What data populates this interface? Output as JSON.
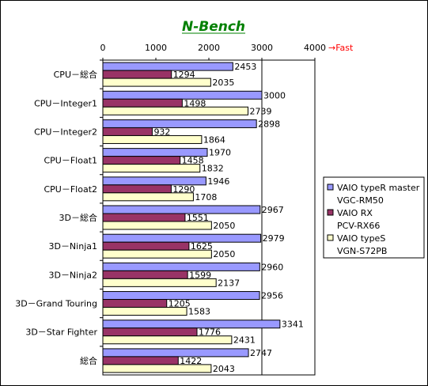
{
  "chart_data": {
    "type": "bar",
    "orientation": "horizontal",
    "title": "N-Bench",
    "axis_note": "→Fast",
    "xlim": [
      0,
      4000
    ],
    "xticks": [
      "0",
      "1000",
      "2000",
      "3000",
      "4000"
    ],
    "grid": false,
    "legend_position": "right",
    "categories": [
      "CPU－総合",
      "CPU－Integer1",
      "CPU－Integer2",
      "CPU－Float1",
      "CPU－Float2",
      "3D－総合",
      "3D－Ninja1",
      "3D－Ninja2",
      "3D－Grand Touring",
      "3D－Star Fighter",
      "総合"
    ],
    "series": [
      {
        "name": "VAIO typeR master",
        "subname": "VGC-RM50",
        "color": "#9999ff",
        "values": [
          2453,
          3000,
          2898,
          1970,
          1946,
          2967,
          2979,
          2960,
          2956,
          3341,
          2747
        ]
      },
      {
        "name": "VAIO RX",
        "subname": "PCV-RX66",
        "color": "#993366",
        "values": [
          1294,
          1498,
          932,
          1458,
          1290,
          1551,
          1625,
          1599,
          1205,
          1776,
          1422
        ]
      },
      {
        "name": "VAIO typeS",
        "subname": "VGN-S72PB",
        "color": "#ffffcc",
        "values": [
          2035,
          2739,
          1864,
          1832,
          1708,
          2050,
          2050,
          2137,
          1583,
          2431,
          2043
        ]
      }
    ]
  }
}
